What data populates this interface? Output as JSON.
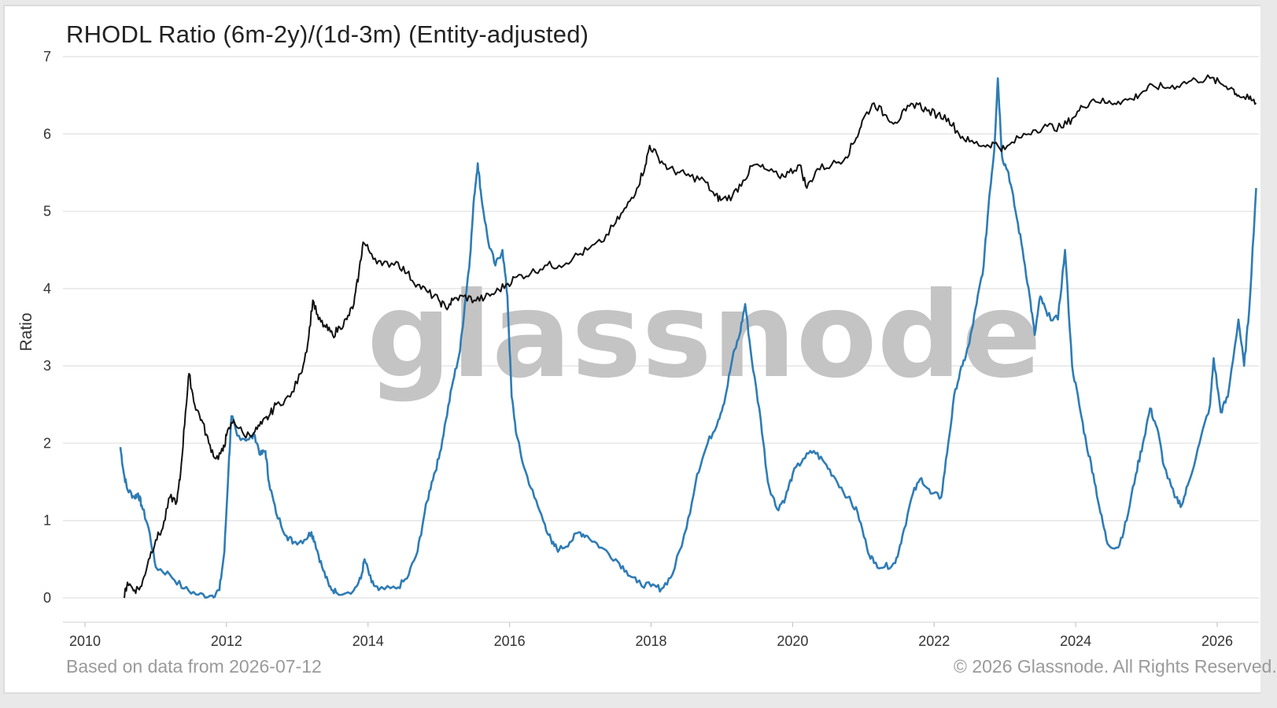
{
  "header": {
    "title": "RHODL Ratio (6m-2y)/(1d-3m) (Entity-adjusted)"
  },
  "footer": {
    "left": "Based on data from 2026-07-12",
    "right": "© 2026 Glassnode. All Rights Reserved."
  },
  "watermark": "glassnode",
  "colors": {
    "ratio_series": "#2e7cb5",
    "price_series": "#111111",
    "grid": "#e6e6e6"
  },
  "chart_data": {
    "type": "line",
    "title": "RHODL Ratio (6m-2y)/(1d-3m) (Entity-adjusted)",
    "ylabel": "Ratio",
    "xlabel": "",
    "xlim": [
      2010,
      2026.6
    ],
    "ylim": [
      0,
      7
    ],
    "x_ticks": [
      "2010",
      "2012",
      "2014",
      "2016",
      "2018",
      "2020",
      "2022",
      "2024",
      "2026"
    ],
    "y_ticks": [
      "0",
      "1",
      "2",
      "3",
      "4",
      "5",
      "6",
      "7"
    ],
    "grid": "horizontal",
    "series": [
      {
        "color": "#2e7cb5",
        "points": [
          [
            2010.5,
            1.95
          ],
          [
            2010.55,
            1.6
          ],
          [
            2010.6,
            1.4
          ],
          [
            2010.7,
            1.3
          ],
          [
            2010.75,
            1.35
          ],
          [
            2010.8,
            1.2
          ],
          [
            2010.9,
            0.9
          ],
          [
            2011.0,
            0.4
          ],
          [
            2011.2,
            0.3
          ],
          [
            2011.4,
            0.12
          ],
          [
            2011.6,
            0.04
          ],
          [
            2011.8,
            0.03
          ],
          [
            2011.9,
            0.1
          ],
          [
            2011.97,
            0.6
          ],
          [
            2012.03,
            1.7
          ],
          [
            2012.07,
            2.35
          ],
          [
            2012.15,
            2.1
          ],
          [
            2012.3,
            2.05
          ],
          [
            2012.4,
            2.1
          ],
          [
            2012.48,
            1.85
          ],
          [
            2012.55,
            1.9
          ],
          [
            2012.6,
            1.5
          ],
          [
            2012.7,
            1.1
          ],
          [
            2012.85,
            0.8
          ],
          [
            2012.95,
            0.72
          ],
          [
            2013.1,
            0.75
          ],
          [
            2013.2,
            0.85
          ],
          [
            2013.25,
            0.72
          ],
          [
            2013.35,
            0.4
          ],
          [
            2013.45,
            0.15
          ],
          [
            2013.55,
            0.07
          ],
          [
            2013.8,
            0.1
          ],
          [
            2013.9,
            0.25
          ],
          [
            2013.95,
            0.5
          ],
          [
            2014.05,
            0.2
          ],
          [
            2014.15,
            0.1
          ],
          [
            2014.4,
            0.12
          ],
          [
            2014.55,
            0.25
          ],
          [
            2014.7,
            0.6
          ],
          [
            2014.8,
            1.1
          ],
          [
            2014.9,
            1.5
          ],
          [
            2015.0,
            1.8
          ],
          [
            2015.1,
            2.3
          ],
          [
            2015.2,
            2.8
          ],
          [
            2015.3,
            3.2
          ],
          [
            2015.38,
            3.9
          ],
          [
            2015.44,
            4.4
          ],
          [
            2015.5,
            5.2
          ],
          [
            2015.55,
            5.62
          ],
          [
            2015.6,
            5.2
          ],
          [
            2015.7,
            4.6
          ],
          [
            2015.8,
            4.3
          ],
          [
            2015.9,
            4.5
          ],
          [
            2015.97,
            3.9
          ],
          [
            2016.03,
            2.6
          ],
          [
            2016.1,
            2.1
          ],
          [
            2016.2,
            1.7
          ],
          [
            2016.35,
            1.3
          ],
          [
            2016.5,
            0.95
          ],
          [
            2016.6,
            0.7
          ],
          [
            2016.7,
            0.62
          ],
          [
            2016.85,
            0.72
          ],
          [
            2016.98,
            0.85
          ],
          [
            2017.1,
            0.8
          ],
          [
            2017.3,
            0.65
          ],
          [
            2017.5,
            0.5
          ],
          [
            2017.65,
            0.35
          ],
          [
            2017.8,
            0.2
          ],
          [
            2018.0,
            0.15
          ],
          [
            2018.15,
            0.12
          ],
          [
            2018.3,
            0.3
          ],
          [
            2018.5,
            0.9
          ],
          [
            2018.65,
            1.6
          ],
          [
            2018.8,
            2.0
          ],
          [
            2018.95,
            2.3
          ],
          [
            2019.05,
            2.6
          ],
          [
            2019.15,
            3.1
          ],
          [
            2019.25,
            3.4
          ],
          [
            2019.33,
            3.8
          ],
          [
            2019.42,
            3.1
          ],
          [
            2019.55,
            2.3
          ],
          [
            2019.65,
            1.5
          ],
          [
            2019.78,
            1.15
          ],
          [
            2019.9,
            1.3
          ],
          [
            2020.0,
            1.6
          ],
          [
            2020.15,
            1.8
          ],
          [
            2020.3,
            1.9
          ],
          [
            2020.45,
            1.75
          ],
          [
            2020.6,
            1.55
          ],
          [
            2020.78,
            1.3
          ],
          [
            2020.92,
            1.1
          ],
          [
            2021.05,
            0.65
          ],
          [
            2021.15,
            0.45
          ],
          [
            2021.3,
            0.4
          ],
          [
            2021.45,
            0.45
          ],
          [
            2021.55,
            0.8
          ],
          [
            2021.7,
            1.35
          ],
          [
            2021.82,
            1.55
          ],
          [
            2021.95,
            1.35
          ],
          [
            2022.1,
            1.3
          ],
          [
            2022.2,
            2.0
          ],
          [
            2022.3,
            2.7
          ],
          [
            2022.4,
            3.0
          ],
          [
            2022.5,
            3.3
          ],
          [
            2022.6,
            3.8
          ],
          [
            2022.7,
            4.3
          ],
          [
            2022.78,
            5.2
          ],
          [
            2022.85,
            5.8
          ],
          [
            2022.9,
            6.72
          ],
          [
            2022.96,
            5.7
          ],
          [
            2023.05,
            5.5
          ],
          [
            2023.15,
            5.0
          ],
          [
            2023.25,
            4.5
          ],
          [
            2023.35,
            3.9
          ],
          [
            2023.42,
            3.4
          ],
          [
            2023.5,
            3.9
          ],
          [
            2023.6,
            3.65
          ],
          [
            2023.75,
            3.6
          ],
          [
            2023.85,
            4.5
          ],
          [
            2023.95,
            3.0
          ],
          [
            2024.05,
            2.5
          ],
          [
            2024.15,
            2.0
          ],
          [
            2024.25,
            1.6
          ],
          [
            2024.35,
            1.1
          ],
          [
            2024.45,
            0.7
          ],
          [
            2024.6,
            0.65
          ],
          [
            2024.72,
            1.0
          ],
          [
            2024.85,
            1.6
          ],
          [
            2024.95,
            2.0
          ],
          [
            2025.05,
            2.45
          ],
          [
            2025.15,
            2.2
          ],
          [
            2025.25,
            1.7
          ],
          [
            2025.4,
            1.3
          ],
          [
            2025.5,
            1.2
          ],
          [
            2025.6,
            1.5
          ],
          [
            2025.75,
            2.0
          ],
          [
            2025.9,
            2.5
          ],
          [
            2025.95,
            3.1
          ],
          [
            2026.05,
            2.4
          ],
          [
            2026.15,
            2.6
          ],
          [
            2026.3,
            3.6
          ],
          [
            2026.38,
            3.0
          ],
          [
            2026.45,
            3.7
          ],
          [
            2026.55,
            5.3
          ]
        ]
      },
      {
        "color": "#111111",
        "points": [
          [
            2010.55,
            0.0
          ],
          [
            2010.6,
            0.2
          ],
          [
            2010.7,
            0.1
          ],
          [
            2010.8,
            0.15
          ],
          [
            2010.9,
            0.5
          ],
          [
            2011.0,
            0.75
          ],
          [
            2011.1,
            0.9
          ],
          [
            2011.2,
            1.3
          ],
          [
            2011.3,
            1.25
          ],
          [
            2011.35,
            1.6
          ],
          [
            2011.42,
            2.4
          ],
          [
            2011.47,
            2.9
          ],
          [
            2011.55,
            2.5
          ],
          [
            2011.65,
            2.3
          ],
          [
            2011.75,
            2.0
          ],
          [
            2011.85,
            1.8
          ],
          [
            2011.95,
            1.9
          ],
          [
            2012.0,
            2.1
          ],
          [
            2012.1,
            2.3
          ],
          [
            2012.25,
            2.1
          ],
          [
            2012.4,
            2.15
          ],
          [
            2012.5,
            2.25
          ],
          [
            2012.6,
            2.35
          ],
          [
            2012.7,
            2.5
          ],
          [
            2012.9,
            2.6
          ],
          [
            2013.05,
            2.9
          ],
          [
            2013.15,
            3.3
          ],
          [
            2013.22,
            3.85
          ],
          [
            2013.3,
            3.6
          ],
          [
            2013.4,
            3.5
          ],
          [
            2013.5,
            3.4
          ],
          [
            2013.6,
            3.5
          ],
          [
            2013.7,
            3.6
          ],
          [
            2013.8,
            3.8
          ],
          [
            2013.87,
            4.2
          ],
          [
            2013.93,
            4.6
          ],
          [
            2014.05,
            4.45
          ],
          [
            2014.2,
            4.3
          ],
          [
            2014.4,
            4.35
          ],
          [
            2014.55,
            4.2
          ],
          [
            2014.7,
            4.05
          ],
          [
            2014.85,
            3.95
          ],
          [
            2015.0,
            3.85
          ],
          [
            2015.1,
            3.75
          ],
          [
            2015.2,
            3.85
          ],
          [
            2015.35,
            3.9
          ],
          [
            2015.5,
            3.85
          ],
          [
            2015.65,
            3.88
          ],
          [
            2015.8,
            3.95
          ],
          [
            2015.95,
            4.05
          ],
          [
            2016.1,
            4.15
          ],
          [
            2016.3,
            4.2
          ],
          [
            2016.5,
            4.3
          ],
          [
            2016.7,
            4.3
          ],
          [
            2016.9,
            4.4
          ],
          [
            2017.1,
            4.5
          ],
          [
            2017.3,
            4.6
          ],
          [
            2017.5,
            4.85
          ],
          [
            2017.65,
            5.05
          ],
          [
            2017.8,
            5.3
          ],
          [
            2017.92,
            5.6
          ],
          [
            2017.98,
            5.85
          ],
          [
            2018.1,
            5.7
          ],
          [
            2018.25,
            5.55
          ],
          [
            2018.4,
            5.5
          ],
          [
            2018.55,
            5.45
          ],
          [
            2018.75,
            5.4
          ],
          [
            2018.9,
            5.2
          ],
          [
            2019.0,
            5.15
          ],
          [
            2019.15,
            5.2
          ],
          [
            2019.3,
            5.4
          ],
          [
            2019.45,
            5.6
          ],
          [
            2019.6,
            5.55
          ],
          [
            2019.8,
            5.45
          ],
          [
            2019.95,
            5.5
          ],
          [
            2020.1,
            5.6
          ],
          [
            2020.2,
            5.3
          ],
          [
            2020.35,
            5.55
          ],
          [
            2020.55,
            5.6
          ],
          [
            2020.75,
            5.7
          ],
          [
            2020.9,
            5.95
          ],
          [
            2021.0,
            6.2
          ],
          [
            2021.15,
            6.4
          ],
          [
            2021.3,
            6.25
          ],
          [
            2021.45,
            6.15
          ],
          [
            2021.6,
            6.3
          ],
          [
            2021.75,
            6.4
          ],
          [
            2021.9,
            6.3
          ],
          [
            2022.05,
            6.25
          ],
          [
            2022.2,
            6.2
          ],
          [
            2022.35,
            6.0
          ],
          [
            2022.5,
            5.9
          ],
          [
            2022.7,
            5.85
          ],
          [
            2022.85,
            5.88
          ],
          [
            2023.0,
            5.8
          ],
          [
            2023.2,
            5.95
          ],
          [
            2023.4,
            6.05
          ],
          [
            2023.6,
            6.1
          ],
          [
            2023.8,
            6.08
          ],
          [
            2023.95,
            6.2
          ],
          [
            2024.1,
            6.35
          ],
          [
            2024.25,
            6.45
          ],
          [
            2024.45,
            6.4
          ],
          [
            2024.6,
            6.42
          ],
          [
            2024.8,
            6.45
          ],
          [
            2024.95,
            6.55
          ],
          [
            2025.1,
            6.62
          ],
          [
            2025.3,
            6.6
          ],
          [
            2025.5,
            6.65
          ],
          [
            2025.7,
            6.7
          ],
          [
            2025.9,
            6.72
          ],
          [
            2026.05,
            6.65
          ],
          [
            2026.2,
            6.6
          ],
          [
            2026.3,
            6.5
          ],
          [
            2026.45,
            6.45
          ],
          [
            2026.55,
            6.4
          ]
        ]
      }
    ]
  }
}
